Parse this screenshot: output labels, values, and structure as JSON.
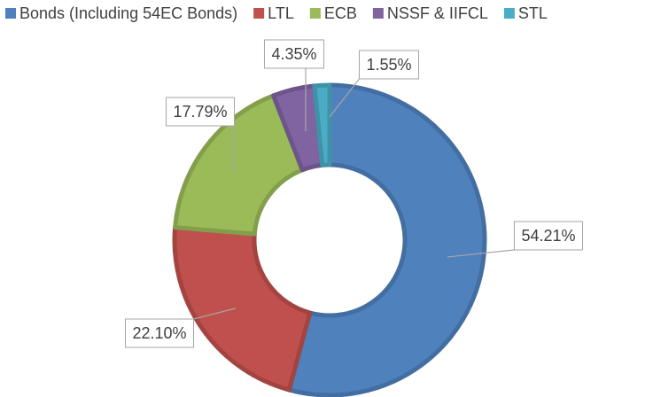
{
  "chart_data": {
    "type": "donut",
    "categories": [
      "Bonds (Including 54EC Bonds)",
      "LTL",
      "ECB",
      "NSSF & IIFCL",
      "STL"
    ],
    "values": [
      54.21,
      22.1,
      17.79,
      4.35,
      1.55
    ],
    "value_labels": [
      "54.21%",
      "22.10%",
      "17.79%",
      "4.35%",
      "1.55%"
    ],
    "colors": [
      "#4f81bd",
      "#c0504d",
      "#9bbb59",
      "#8064a2",
      "#4bacc6"
    ],
    "legend": "top"
  }
}
